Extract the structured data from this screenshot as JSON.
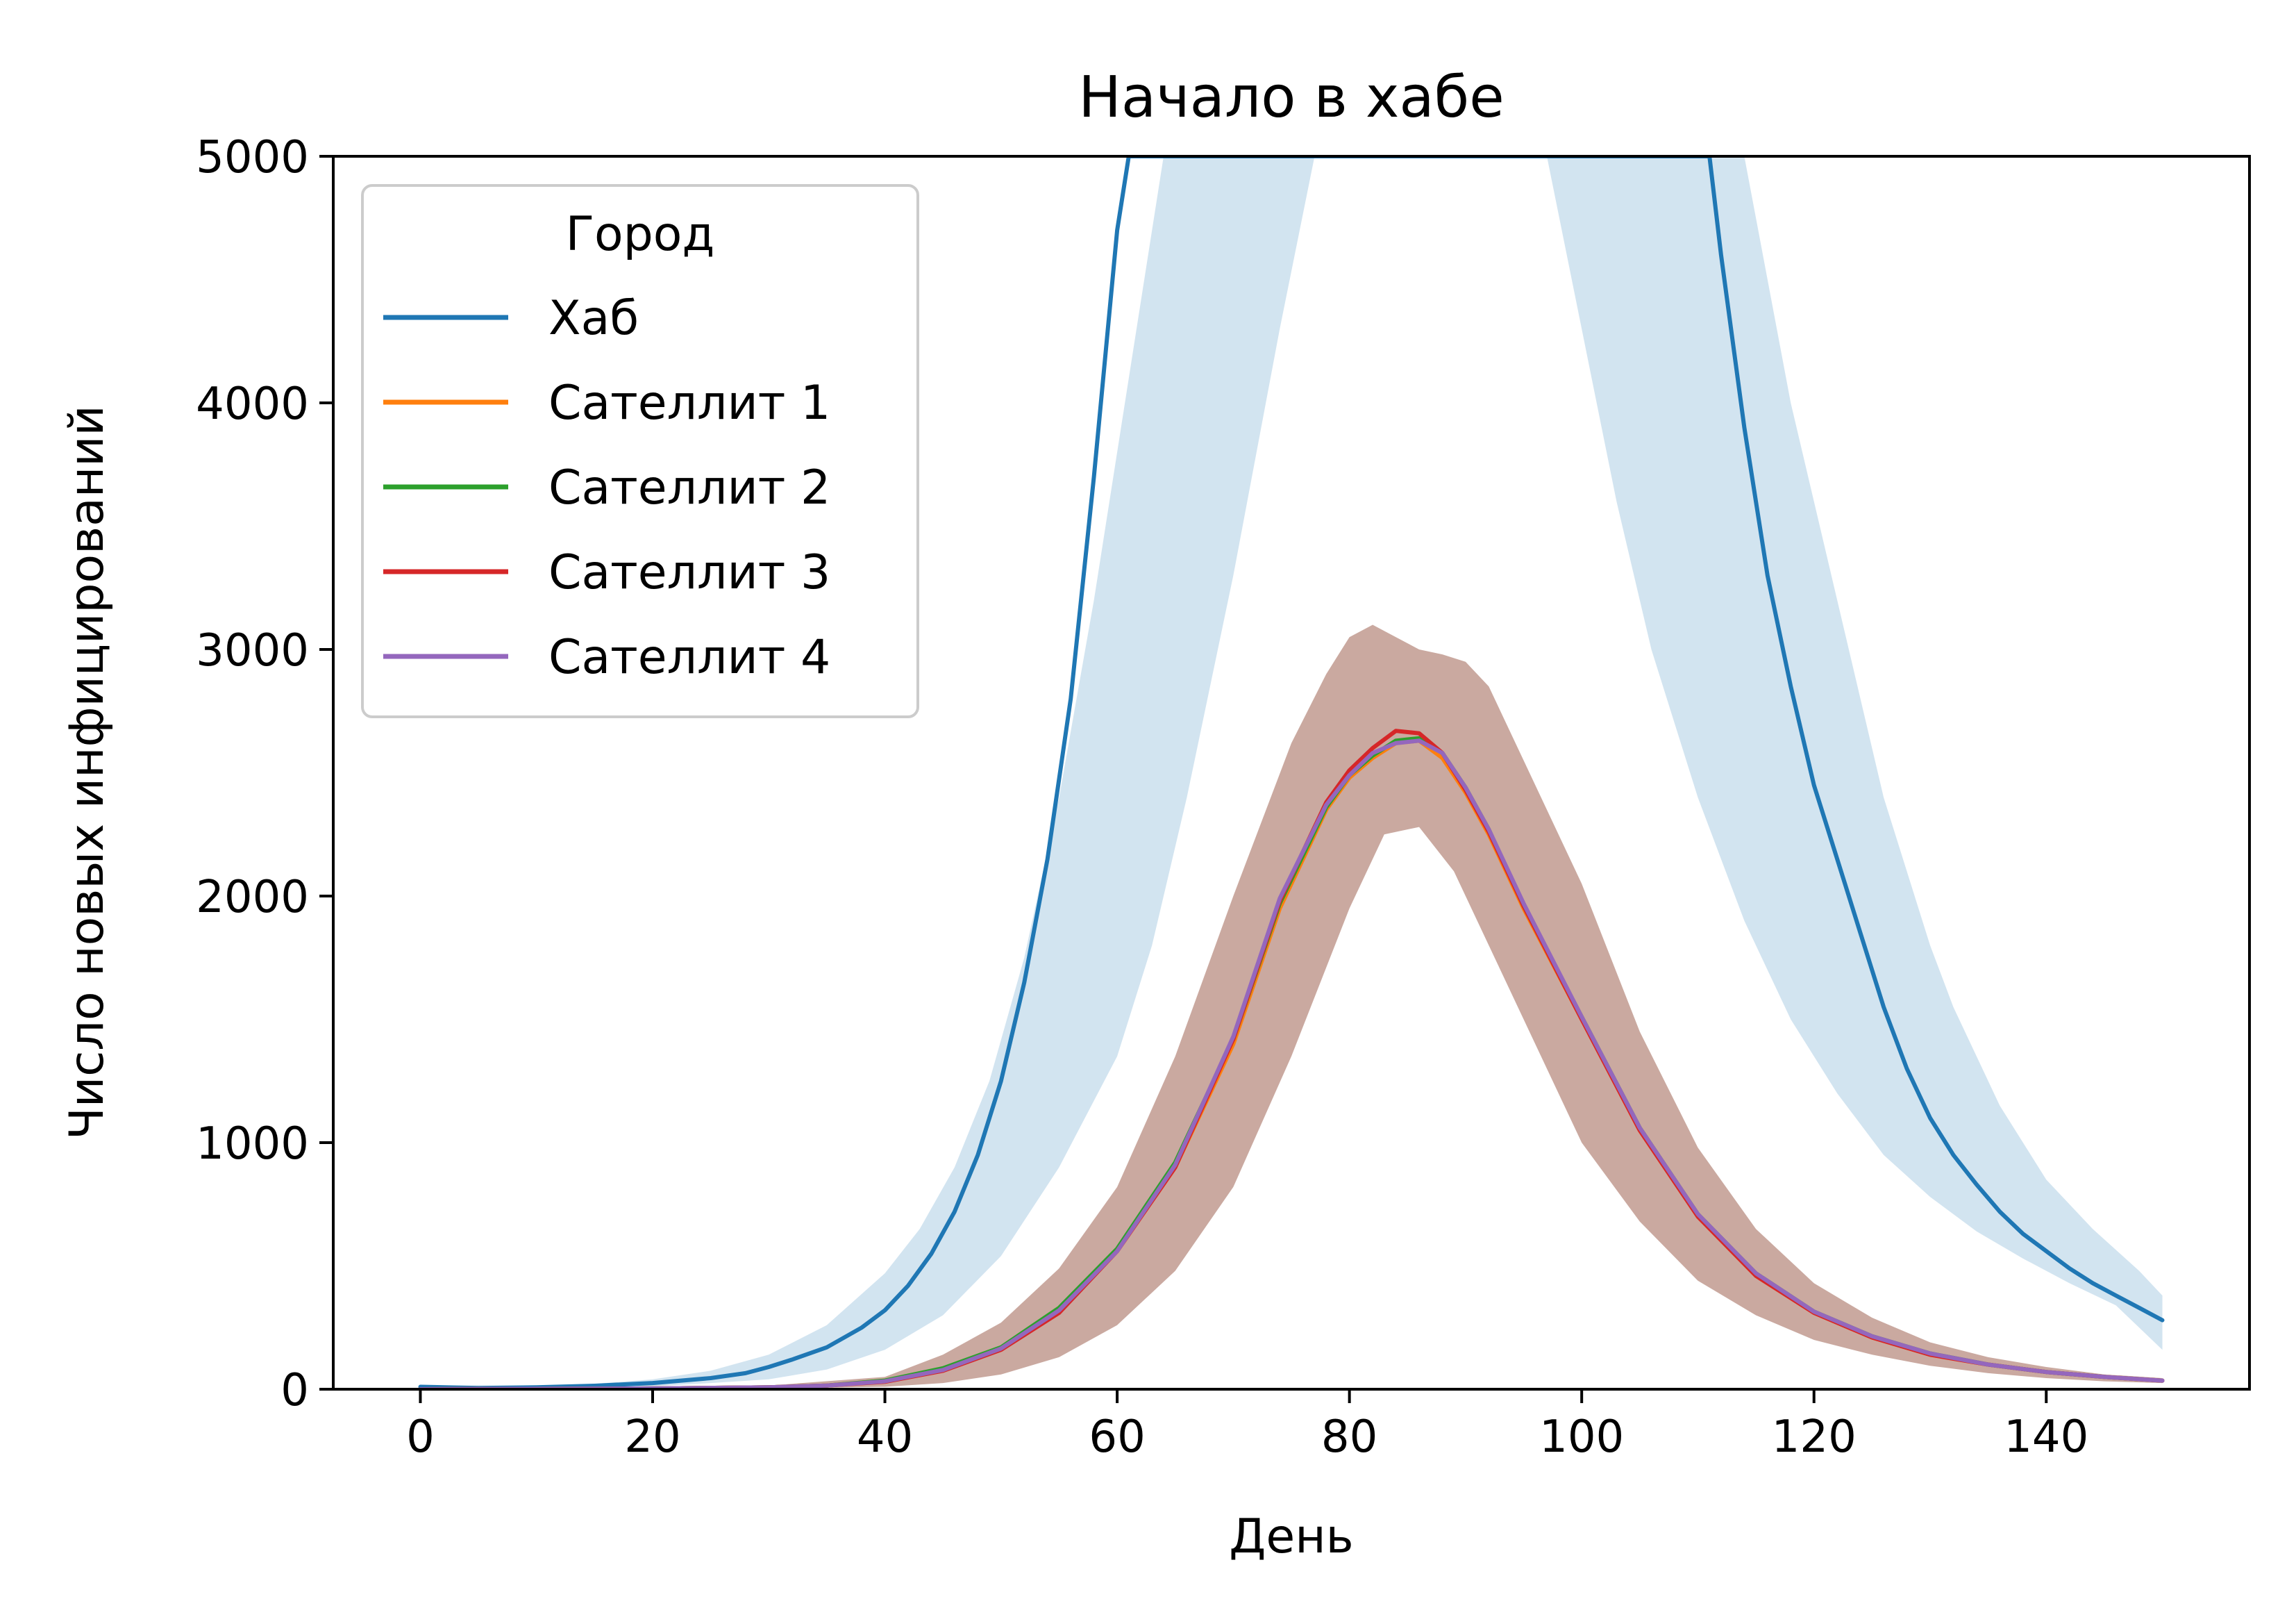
{
  "chart_data": {
    "type": "line",
    "title": "Начало в хабе",
    "xlabel": "День",
    "ylabel": "Число новых инфицирований",
    "xlim": [
      -7.5,
      157.5
    ],
    "ylim": [
      0,
      5000
    ],
    "xticks": [
      0,
      20,
      40,
      60,
      80,
      100,
      120,
      140
    ],
    "yticks": [
      0,
      1000,
      2000,
      3000,
      4000,
      5000
    ],
    "grid": false,
    "legend": {
      "title": "Город",
      "placement": "top-left"
    },
    "colors": {
      "hub": "#1f77b4",
      "sat1": "#ff7f0e",
      "sat2": "#2ca02c",
      "sat3": "#d62728",
      "sat4": "#9467bd",
      "sat_band": "#c4a096"
    },
    "series": [
      {
        "name": "Хаб",
        "color": "#1f77b4",
        "points": [
          [
            0,
            10
          ],
          [
            5,
            5
          ],
          [
            10,
            8
          ],
          [
            15,
            14
          ],
          [
            20,
            25
          ],
          [
            25,
            45
          ],
          [
            28,
            65
          ],
          [
            30,
            90
          ],
          [
            32,
            120
          ],
          [
            35,
            170
          ],
          [
            38,
            250
          ],
          [
            40,
            320
          ],
          [
            42,
            420
          ],
          [
            44,
            550
          ],
          [
            46,
            720
          ],
          [
            48,
            950
          ],
          [
            50,
            1250
          ],
          [
            52,
            1650
          ],
          [
            54,
            2150
          ],
          [
            56,
            2800
          ],
          [
            58,
            3700
          ],
          [
            60,
            4700
          ],
          [
            61,
            5000
          ],
          [
            111,
            5000
          ],
          [
            112,
            4600
          ],
          [
            114,
            3900
          ],
          [
            116,
            3300
          ],
          [
            118,
            2850
          ],
          [
            120,
            2450
          ],
          [
            122,
            2150
          ],
          [
            124,
            1850
          ],
          [
            126,
            1550
          ],
          [
            128,
            1300
          ],
          [
            130,
            1100
          ],
          [
            132,
            950
          ],
          [
            134,
            830
          ],
          [
            136,
            720
          ],
          [
            138,
            630
          ],
          [
            140,
            560
          ],
          [
            142,
            490
          ],
          [
            144,
            430
          ],
          [
            146,
            380
          ],
          [
            148,
            330
          ],
          [
            150,
            280
          ]
        ],
        "band_lower": [
          [
            0,
            0
          ],
          [
            10,
            5
          ],
          [
            20,
            12
          ],
          [
            25,
            25
          ],
          [
            30,
            40
          ],
          [
            35,
            80
          ],
          [
            40,
            160
          ],
          [
            45,
            300
          ],
          [
            50,
            540
          ],
          [
            55,
            900
          ],
          [
            60,
            1350
          ],
          [
            63,
            1800
          ],
          [
            66,
            2400
          ],
          [
            70,
            3300
          ],
          [
            74,
            4300
          ],
          [
            77,
            5000
          ],
          [
            97,
            5000
          ],
          [
            100,
            4300
          ],
          [
            103,
            3600
          ],
          [
            106,
            3000
          ],
          [
            110,
            2400
          ],
          [
            114,
            1900
          ],
          [
            118,
            1500
          ],
          [
            122,
            1200
          ],
          [
            126,
            950
          ],
          [
            130,
            780
          ],
          [
            134,
            640
          ],
          [
            138,
            530
          ],
          [
            142,
            430
          ],
          [
            146,
            340
          ],
          [
            150,
            160
          ]
        ],
        "band_upper": [
          [
            0,
            15
          ],
          [
            10,
            15
          ],
          [
            15,
            22
          ],
          [
            20,
            40
          ],
          [
            25,
            75
          ],
          [
            30,
            140
          ],
          [
            35,
            260
          ],
          [
            40,
            470
          ],
          [
            43,
            650
          ],
          [
            46,
            900
          ],
          [
            49,
            1250
          ],
          [
            52,
            1750
          ],
          [
            55,
            2400
          ],
          [
            58,
            3200
          ],
          [
            61,
            4100
          ],
          [
            64,
            5000
          ],
          [
            114,
            5000
          ],
          [
            116,
            4500
          ],
          [
            118,
            4000
          ],
          [
            120,
            3600
          ],
          [
            122,
            3200
          ],
          [
            124,
            2800
          ],
          [
            126,
            2400
          ],
          [
            128,
            2100
          ],
          [
            130,
            1800
          ],
          [
            132,
            1550
          ],
          [
            134,
            1350
          ],
          [
            136,
            1150
          ],
          [
            138,
            1000
          ],
          [
            140,
            850
          ],
          [
            144,
            650
          ],
          [
            148,
            480
          ],
          [
            150,
            380
          ]
        ]
      },
      {
        "name": "Сателлит 1",
        "color": "#ff7f0e",
        "points": [
          [
            0,
            0
          ],
          [
            20,
            3
          ],
          [
            30,
            8
          ],
          [
            35,
            15
          ],
          [
            40,
            35
          ],
          [
            45,
            80
          ],
          [
            50,
            160
          ],
          [
            55,
            320
          ],
          [
            60,
            560
          ],
          [
            65,
            900
          ],
          [
            70,
            1400
          ],
          [
            74,
            1950
          ],
          [
            78,
            2350
          ],
          [
            80,
            2480
          ],
          [
            82,
            2560
          ],
          [
            84,
            2620
          ],
          [
            86,
            2630
          ],
          [
            88,
            2560
          ],
          [
            90,
            2420
          ],
          [
            92,
            2250
          ],
          [
            95,
            1950
          ],
          [
            100,
            1500
          ],
          [
            105,
            1050
          ],
          [
            110,
            700
          ],
          [
            115,
            460
          ],
          [
            120,
            310
          ],
          [
            125,
            210
          ],
          [
            130,
            140
          ],
          [
            135,
            100
          ],
          [
            140,
            70
          ],
          [
            145,
            50
          ],
          [
            150,
            35
          ]
        ]
      },
      {
        "name": "Сателлит 2",
        "color": "#2ca02c",
        "points": [
          [
            0,
            0
          ],
          [
            20,
            3
          ],
          [
            30,
            8
          ],
          [
            35,
            15
          ],
          [
            40,
            35
          ],
          [
            45,
            85
          ],
          [
            50,
            170
          ],
          [
            55,
            330
          ],
          [
            60,
            570
          ],
          [
            65,
            920
          ],
          [
            70,
            1420
          ],
          [
            74,
            1970
          ],
          [
            78,
            2360
          ],
          [
            80,
            2490
          ],
          [
            82,
            2570
          ],
          [
            84,
            2630
          ],
          [
            86,
            2640
          ],
          [
            88,
            2580
          ],
          [
            90,
            2440
          ],
          [
            92,
            2270
          ],
          [
            95,
            1960
          ],
          [
            100,
            1510
          ],
          [
            105,
            1060
          ],
          [
            110,
            710
          ],
          [
            115,
            470
          ],
          [
            120,
            315
          ],
          [
            125,
            215
          ],
          [
            130,
            145
          ],
          [
            135,
            100
          ],
          [
            140,
            70
          ],
          [
            145,
            50
          ],
          [
            150,
            35
          ]
        ]
      },
      {
        "name": "Сателлит 3",
        "color": "#d62728",
        "points": [
          [
            0,
            0
          ],
          [
            20,
            3
          ],
          [
            30,
            8
          ],
          [
            35,
            15
          ],
          [
            40,
            30
          ],
          [
            45,
            75
          ],
          [
            50,
            160
          ],
          [
            55,
            310
          ],
          [
            60,
            560
          ],
          [
            65,
            900
          ],
          [
            70,
            1420
          ],
          [
            74,
            1980
          ],
          [
            78,
            2380
          ],
          [
            80,
            2510
          ],
          [
            82,
            2600
          ],
          [
            84,
            2670
          ],
          [
            86,
            2660
          ],
          [
            88,
            2580
          ],
          [
            90,
            2430
          ],
          [
            92,
            2260
          ],
          [
            95,
            1960
          ],
          [
            100,
            1500
          ],
          [
            105,
            1050
          ],
          [
            110,
            700
          ],
          [
            115,
            460
          ],
          [
            120,
            310
          ],
          [
            125,
            210
          ],
          [
            130,
            140
          ],
          [
            135,
            100
          ],
          [
            140,
            70
          ],
          [
            145,
            50
          ],
          [
            150,
            35
          ]
        ]
      },
      {
        "name": "Сателлит 4",
        "color": "#9467bd",
        "points": [
          [
            0,
            0
          ],
          [
            20,
            3
          ],
          [
            30,
            8
          ],
          [
            35,
            15
          ],
          [
            40,
            32
          ],
          [
            45,
            78
          ],
          [
            50,
            165
          ],
          [
            55,
            320
          ],
          [
            60,
            560
          ],
          [
            65,
            910
          ],
          [
            70,
            1430
          ],
          [
            74,
            1990
          ],
          [
            78,
            2370
          ],
          [
            80,
            2490
          ],
          [
            82,
            2580
          ],
          [
            84,
            2620
          ],
          [
            86,
            2630
          ],
          [
            88,
            2580
          ],
          [
            90,
            2440
          ],
          [
            92,
            2270
          ],
          [
            95,
            1970
          ],
          [
            100,
            1510
          ],
          [
            105,
            1060
          ],
          [
            110,
            710
          ],
          [
            115,
            470
          ],
          [
            120,
            315
          ],
          [
            125,
            215
          ],
          [
            130,
            145
          ],
          [
            135,
            100
          ],
          [
            140,
            70
          ],
          [
            145,
            50
          ],
          [
            150,
            35
          ]
        ],
        "band_lower": [
          [
            0,
            0
          ],
          [
            30,
            2
          ],
          [
            40,
            10
          ],
          [
            45,
            25
          ],
          [
            50,
            60
          ],
          [
            55,
            130
          ],
          [
            60,
            260
          ],
          [
            65,
            480
          ],
          [
            70,
            820
          ],
          [
            75,
            1350
          ],
          [
            80,
            1950
          ],
          [
            83,
            2250
          ],
          [
            86,
            2280
          ],
          [
            89,
            2100
          ],
          [
            92,
            1800
          ],
          [
            96,
            1400
          ],
          [
            100,
            1000
          ],
          [
            105,
            680
          ],
          [
            110,
            440
          ],
          [
            115,
            300
          ],
          [
            120,
            200
          ],
          [
            125,
            140
          ],
          [
            130,
            95
          ],
          [
            135,
            65
          ],
          [
            140,
            45
          ],
          [
            145,
            32
          ],
          [
            150,
            25
          ]
        ],
        "band_upper": [
          [
            0,
            5
          ],
          [
            30,
            15
          ],
          [
            40,
            50
          ],
          [
            45,
            140
          ],
          [
            50,
            270
          ],
          [
            55,
            490
          ],
          [
            60,
            820
          ],
          [
            65,
            1350
          ],
          [
            70,
            2000
          ],
          [
            75,
            2620
          ],
          [
            78,
            2900
          ],
          [
            80,
            3050
          ],
          [
            82,
            3100
          ],
          [
            84,
            3050
          ],
          [
            86,
            3000
          ],
          [
            88,
            2980
          ],
          [
            90,
            2950
          ],
          [
            92,
            2850
          ],
          [
            95,
            2550
          ],
          [
            100,
            2050
          ],
          [
            105,
            1450
          ],
          [
            110,
            980
          ],
          [
            115,
            650
          ],
          [
            120,
            430
          ],
          [
            125,
            290
          ],
          [
            130,
            190
          ],
          [
            135,
            130
          ],
          [
            140,
            90
          ],
          [
            145,
            60
          ],
          [
            150,
            45
          ]
        ]
      }
    ]
  }
}
